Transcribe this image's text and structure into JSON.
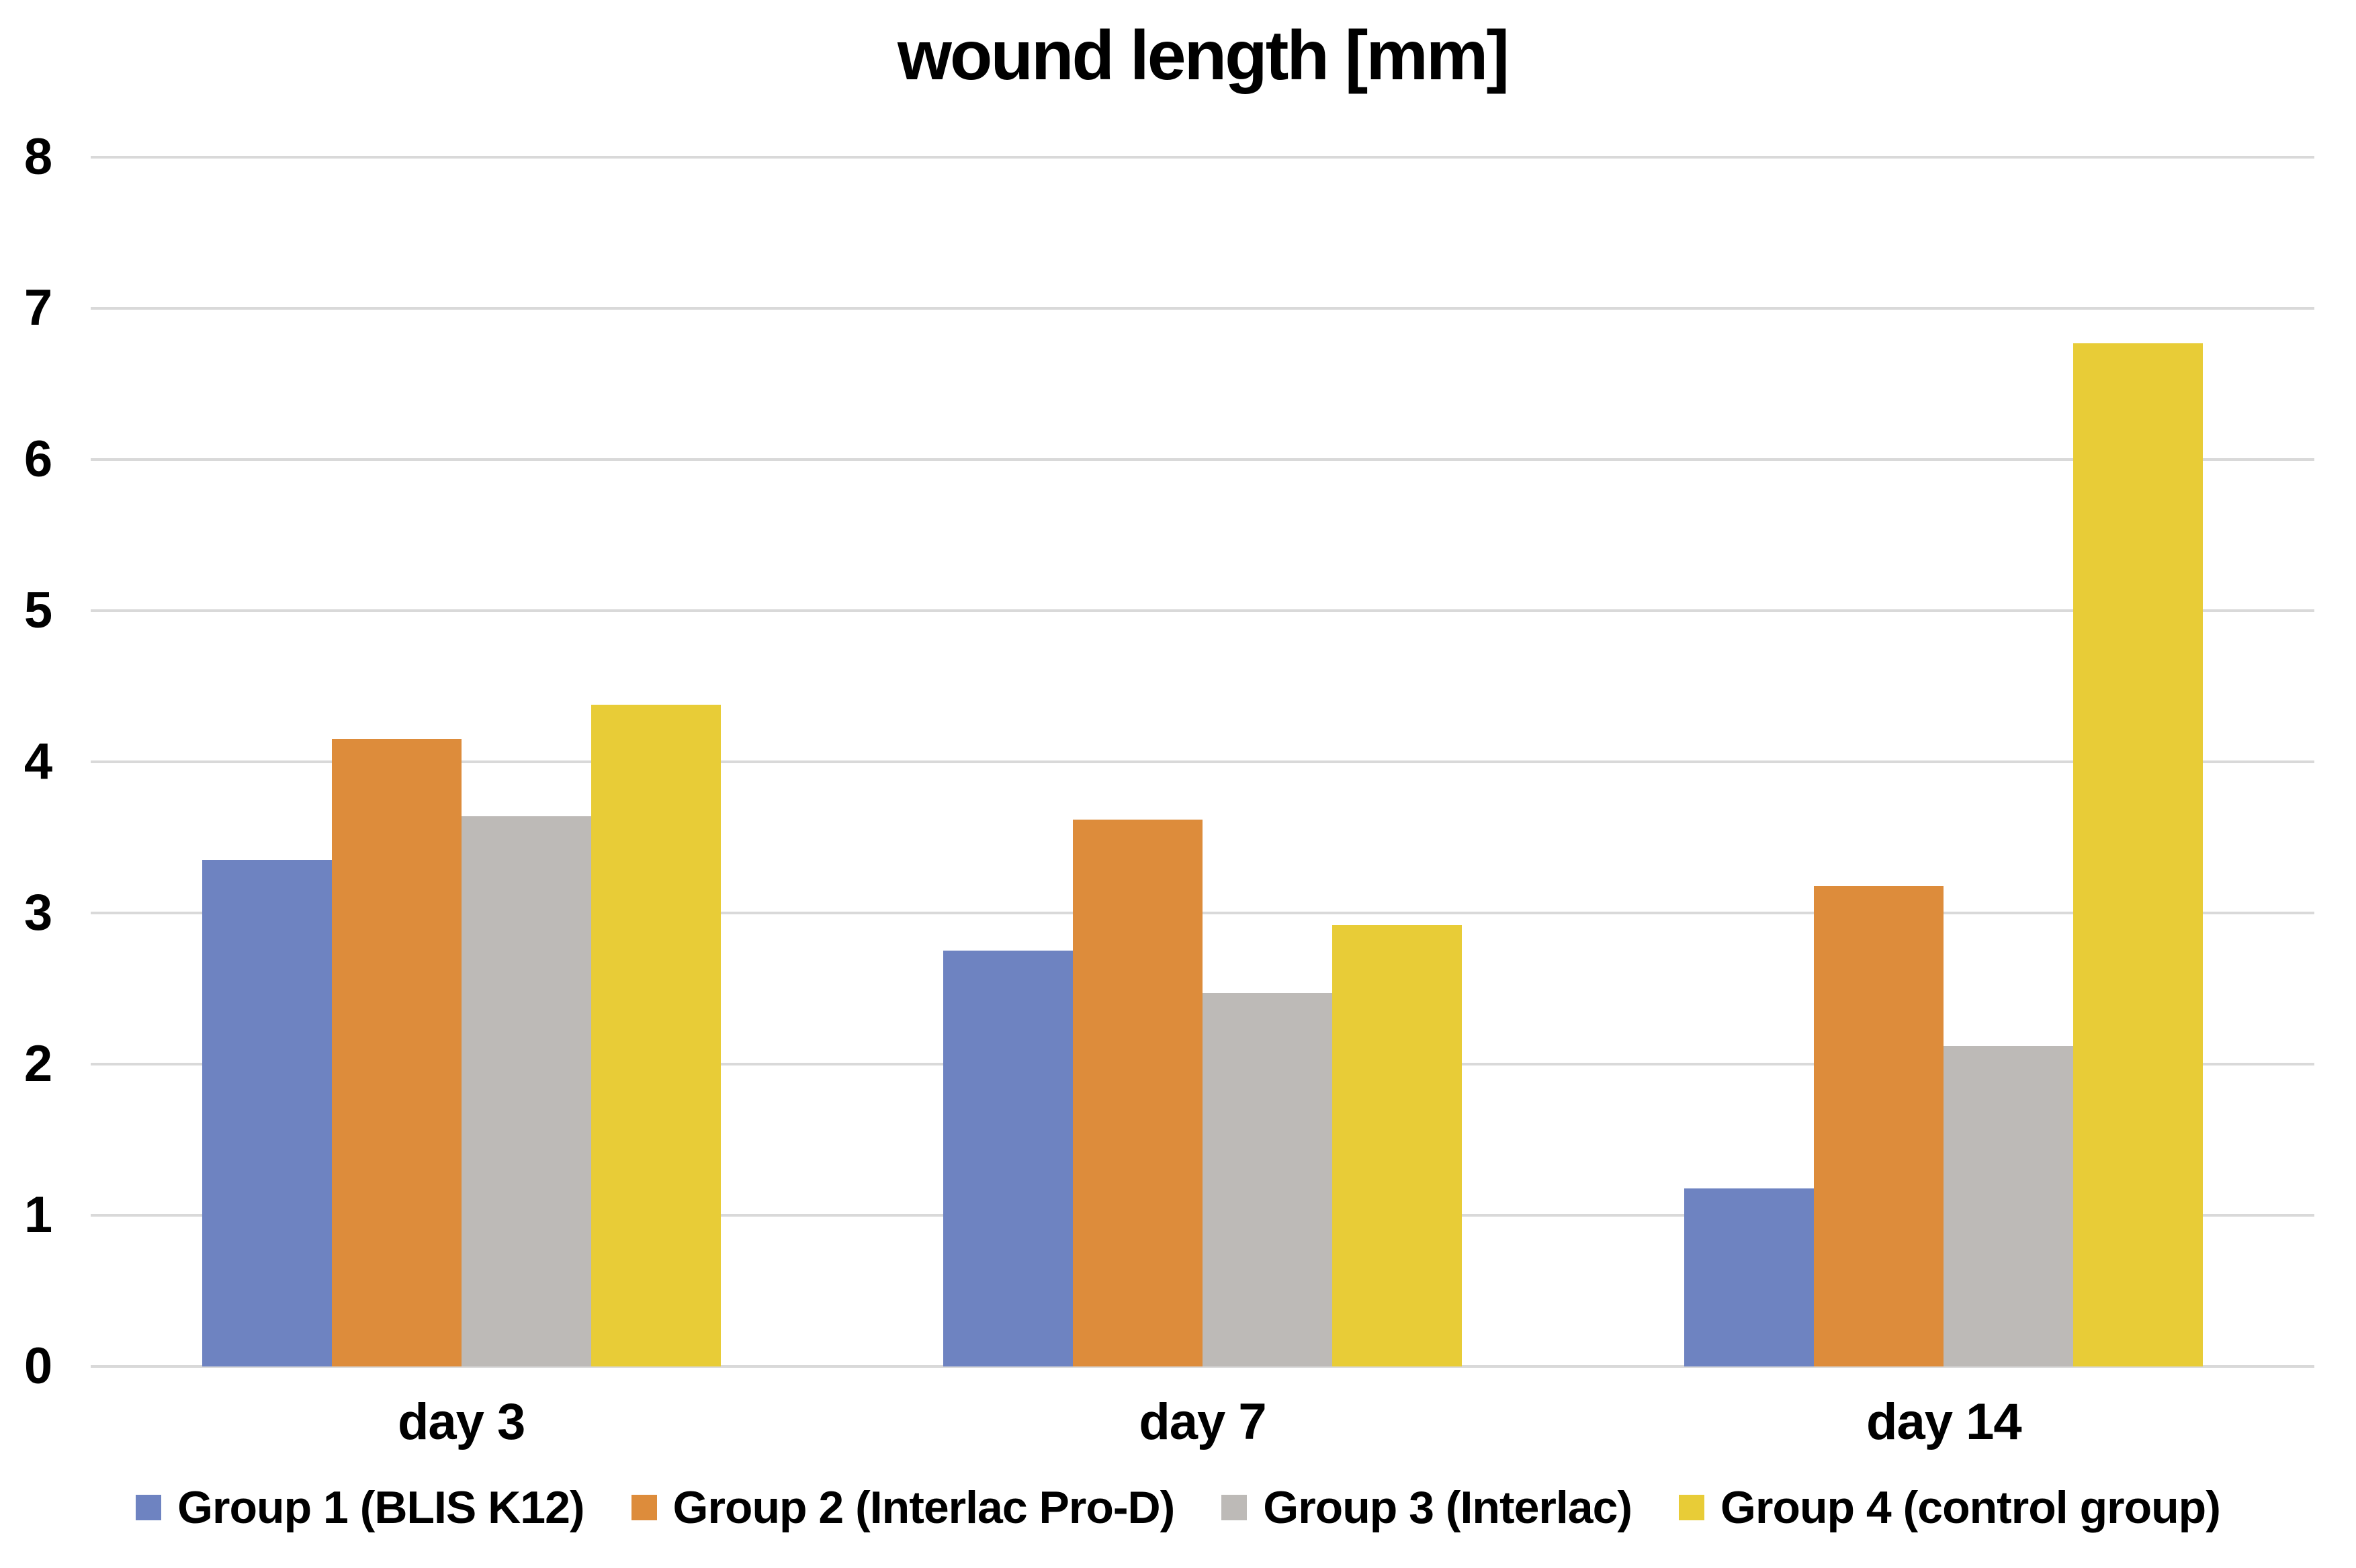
{
  "chart_data": {
    "type": "bar",
    "title": "wound length [mm]",
    "categories": [
      "day 3",
      "day 7",
      "day 14"
    ],
    "series": [
      {
        "name": "Group 1 (BLIS K12)",
        "color": "#6E83C1",
        "values": [
          3.35,
          2.75,
          1.18
        ]
      },
      {
        "name": "Group 2 (Interlac Pro-D)",
        "color": "#DD8C3B",
        "values": [
          4.15,
          3.62,
          3.18
        ]
      },
      {
        "name": "Group 3 (Interlac)",
        "color": "#BDBAB7",
        "values": [
          3.64,
          2.47,
          2.12
        ]
      },
      {
        "name": "Group 4 (control group)",
        "color": "#E8CC37",
        "values": [
          4.38,
          2.92,
          6.77
        ]
      }
    ],
    "xlabel": "",
    "ylabel": "",
    "ylim": [
      0,
      8
    ],
    "yticks": [
      0,
      1,
      2,
      3,
      4,
      5,
      6,
      7,
      8
    ],
    "grid": true,
    "gridline_color": "#D9D9D9",
    "legend_position": "bottom",
    "background": "#FFFFFF",
    "text_color": "#000000"
  }
}
